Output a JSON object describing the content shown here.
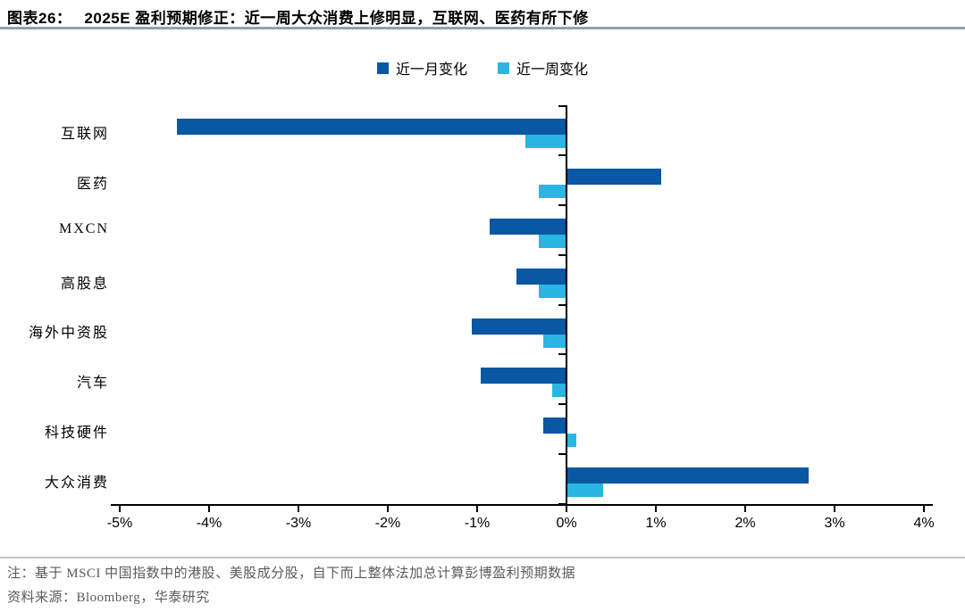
{
  "header": {
    "figure_label": "图表26：",
    "title": "2025E 盈利预期修正：近一周大众消费上修明显，互联网、医药有所下修"
  },
  "chart_data": {
    "type": "bar",
    "orientation": "horizontal",
    "title": "2025E 盈利预期修正",
    "categories": [
      "互联网",
      "医药",
      "MXCN",
      "高股息",
      "海外中资股",
      "汽车",
      "科技硬件",
      "大众消费"
    ],
    "series": [
      {
        "name": "近一月变化",
        "color": "#0a57a4",
        "values": [
          -4.35,
          1.05,
          -0.85,
          -0.55,
          -1.05,
          -0.95,
          -0.25,
          2.7
        ]
      },
      {
        "name": "近一周变化",
        "color": "#29b6e2",
        "values": [
          -0.45,
          -0.3,
          -0.3,
          -0.3,
          -0.25,
          -0.15,
          0.1,
          0.4
        ]
      }
    ],
    "xlim": [
      -5,
      4
    ],
    "x_ticks": [
      "-5%",
      "-4%",
      "-3%",
      "-2%",
      "-1%",
      "0%",
      "1%",
      "2%",
      "3%",
      "4%"
    ],
    "unit": "%",
    "grid": false,
    "legend_position": "top-center"
  },
  "footnote": {
    "note": "注：基于 MSCI 中国指数中的港股、美股成分股，自下而上整体法加总计算彭博盈利预期数据",
    "source": "资料来源：Bloomberg，华泰研究"
  },
  "colors": {
    "month_series": "#0a57a4",
    "week_series": "#29b6e2",
    "axis": "#000000",
    "title_divider": "#8fa0b0",
    "footnote_divider": "#bac3ca",
    "footnote_text": "#5a5a5a"
  }
}
